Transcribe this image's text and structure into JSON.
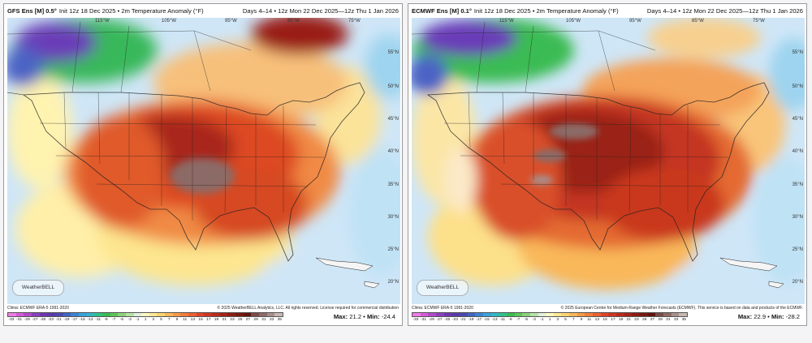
{
  "panels": [
    {
      "model": "GFS Ens [M] 0.5°",
      "init": "Init 12z 18 Dec 2025 • 2m Temperature Anomaly (°F)",
      "valid": "Days 4–14 • 12z Mon 22 Dec 2025—12z Thu 1 Jan 2026",
      "clima": "Clima: ECMWF ERA-5 1991-2020",
      "copyright": "© 2025 WeatherBELL Analytics, LLC. All rights reserved. License required for commercial distribution",
      "max_label": "Max:",
      "max_value": "21.2",
      "min_label": "Min:",
      "min_value": "-24.4",
      "logo": "WeatherBELL"
    },
    {
      "model": "ECMWF Ens [M] 0.1°",
      "init": "Init 12z 18 Dec 2025 • 2m Temperature Anomaly (°F)",
      "valid": "Days 4–14 • 12z Mon 22 Dec 2025—12z Thu 1 Jan 2026",
      "clima": "Clima: ECMWF ERA-5 1991-2020",
      "copyright": "© 2025 European Centre for Medium-Range Weather Forecasts (ECMWF). This service is based on data and products of the ECMWF.",
      "max_label": "Max:",
      "max_value": "22.9",
      "min_label": "Min:",
      "min_value": "-28.2",
      "logo": "WeatherBELL"
    }
  ],
  "lat_labels": [
    "55°N",
    "50°N",
    "45°N",
    "40°N",
    "35°N",
    "30°N",
    "25°N",
    "20°N"
  ],
  "lon_labels": [
    "115°W",
    "105°W",
    "95°W",
    "85°W",
    "75°W"
  ],
  "colorbar_ticks": [
    "-33",
    "-31",
    "-29",
    "-27",
    "-25",
    "-23",
    "-21",
    "-19",
    "-17",
    "-15",
    "-13",
    "-11",
    "-9",
    "-7",
    "-5",
    "-3",
    "-1",
    "1",
    "3",
    "5",
    "7",
    "9",
    "11",
    "13",
    "15",
    "17",
    "19",
    "21",
    "23",
    "25",
    "27",
    "29",
    "31",
    "33",
    "35"
  ],
  "colorbar_colors": [
    "#f07be8",
    "#d75bd6",
    "#b24ac8",
    "#8c3fbd",
    "#6e36b2",
    "#5a3aa8",
    "#4b48b0",
    "#4064c2",
    "#3c84d0",
    "#38a3d8",
    "#2fb7c8",
    "#2fc28a",
    "#3bbb52",
    "#5fc55a",
    "#8bd27a",
    "#b6e3a6",
    "#dff0e0",
    "#fff8c0",
    "#fde994",
    "#fbd470",
    "#f9b85a",
    "#f69a48",
    "#f27c3a",
    "#ec5f30",
    "#e04426",
    "#cf3520",
    "#ba2a1a",
    "#a52216",
    "#8d1d12",
    "#77190f",
    "#60150c",
    "#7a4c48",
    "#8c6b66",
    "#a78f8b",
    "#c7b8b5"
  ]
}
